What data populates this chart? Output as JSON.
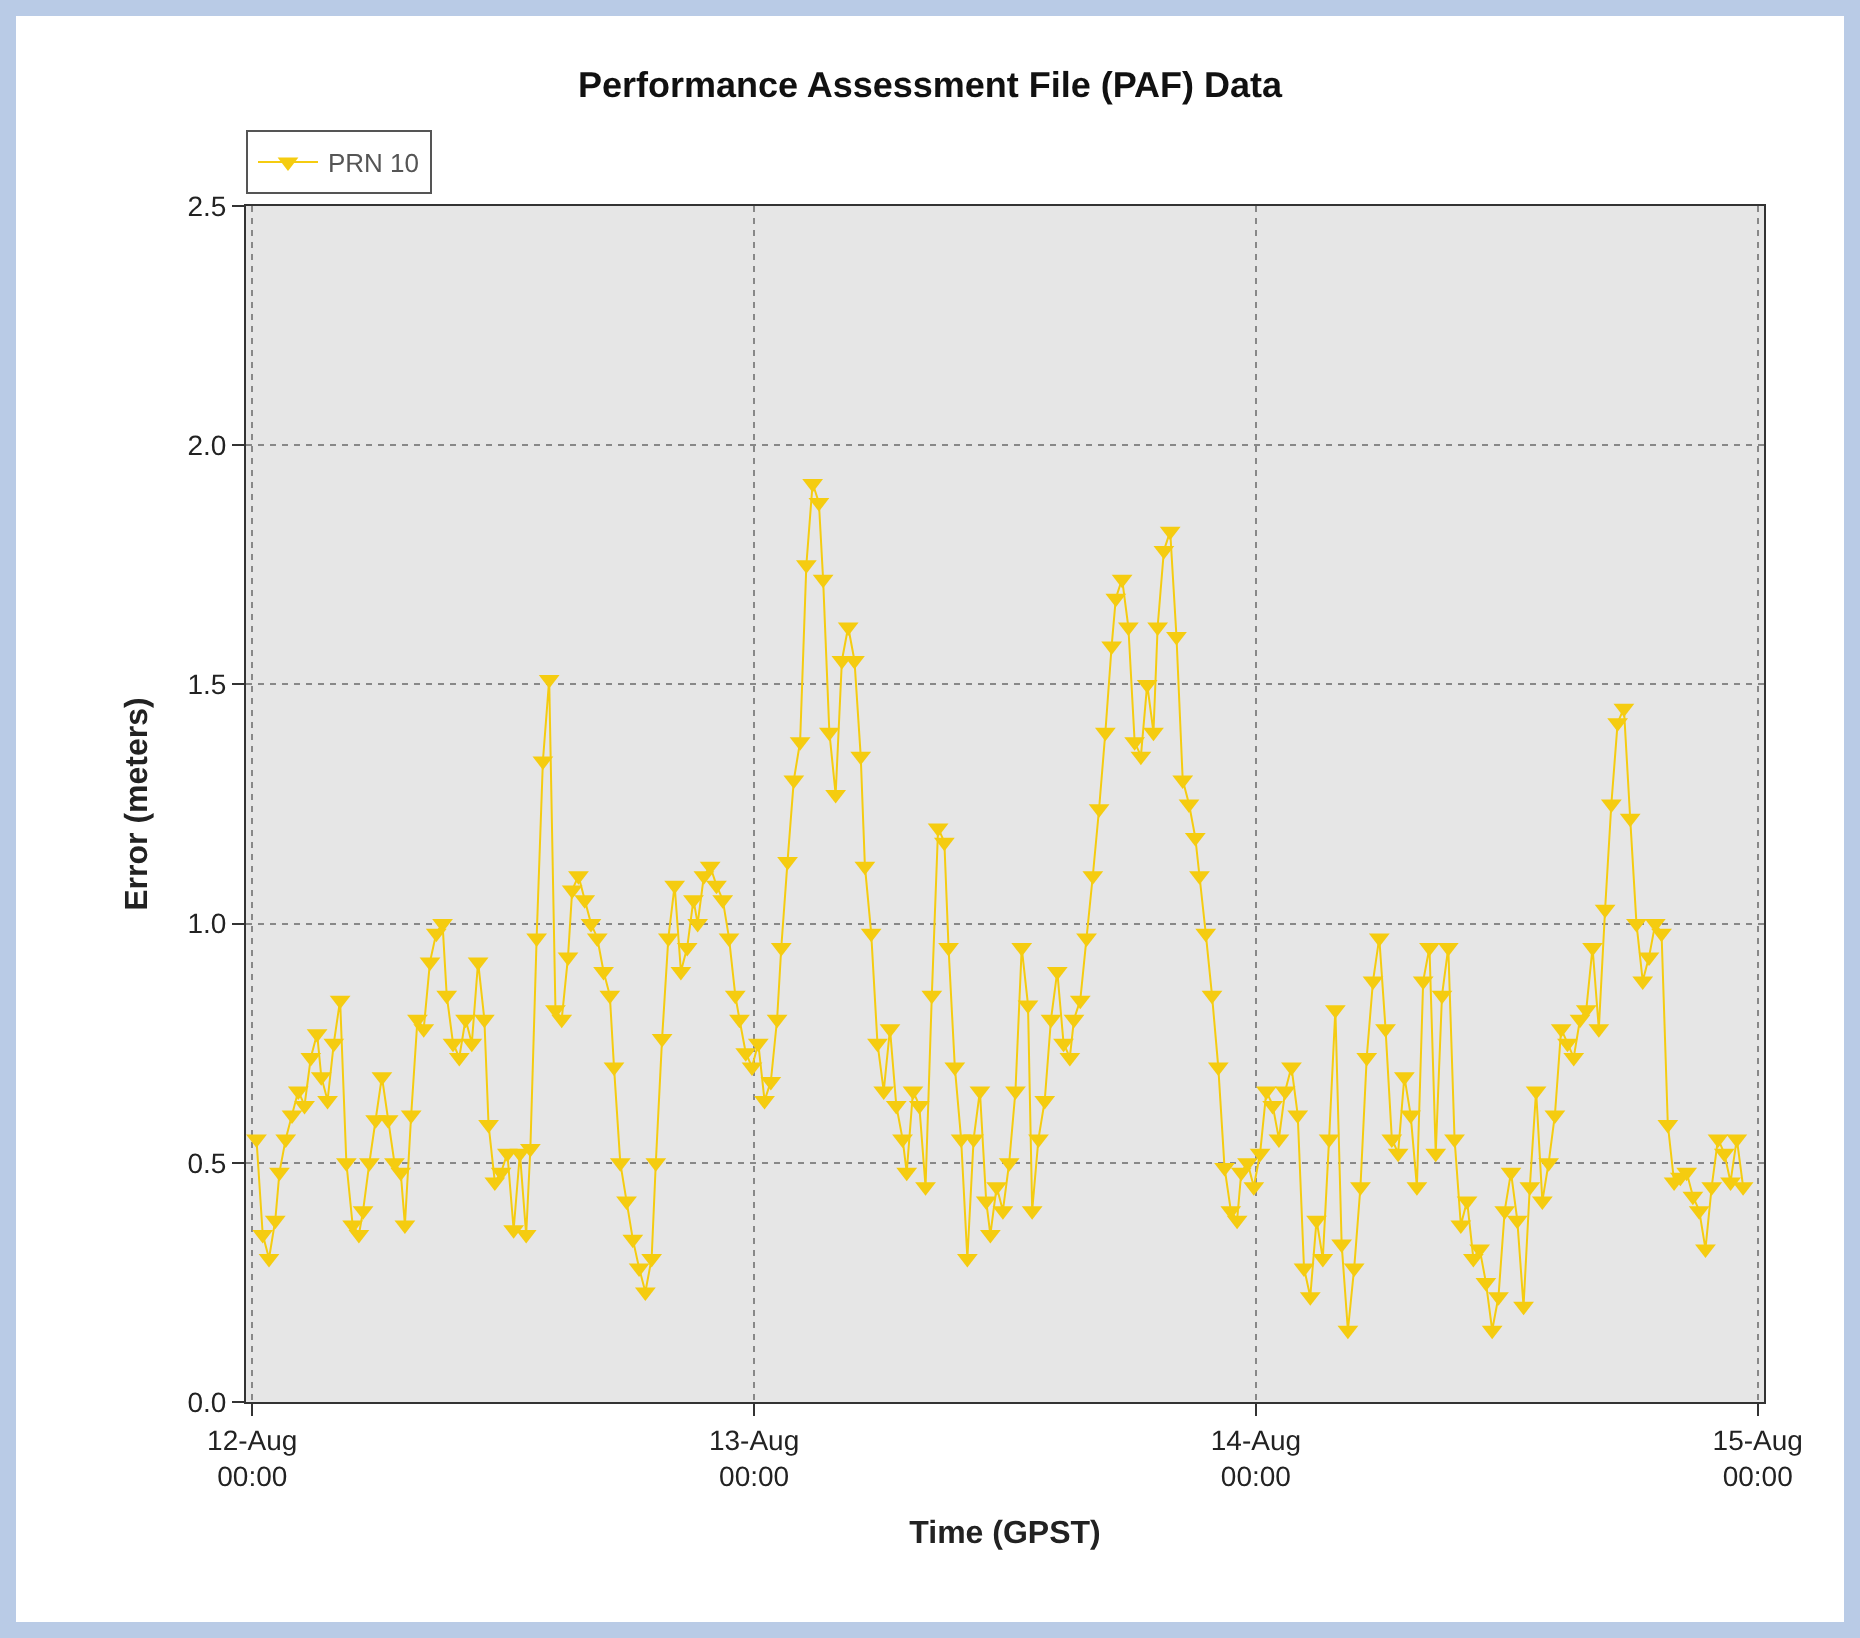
{
  "chart_data": {
    "type": "line",
    "title": "Performance Assessment File (PAF) Data",
    "xlabel": "Time (GPST)",
    "ylabel": "Error (meters)",
    "xlim": [
      "--08-11T23:42",
      "--08-15T00:18"
    ],
    "xticks": [
      {
        "value": "--08-12T00:00",
        "label": "12-Aug\n00:00"
      },
      {
        "value": "--08-13T00:00",
        "label": "13-Aug\n00:00"
      },
      {
        "value": "--08-14T00:00",
        "label": "14-Aug\n00:00"
      },
      {
        "value": "--08-15T00:00",
        "label": "15-Aug\n00:00"
      }
    ],
    "ylim": [
      0,
      2.5
    ],
    "yticks": [
      {
        "value": 0,
        "label": "0.0"
      },
      {
        "value": 0.5,
        "label": "0.5"
      },
      {
        "value": 1,
        "label": "1.0"
      },
      {
        "value": 1.5,
        "label": "1.5"
      },
      {
        "value": 2,
        "label": "2.0"
      },
      {
        "value": 2.5,
        "label": "2.5"
      }
    ],
    "grid": true,
    "legend": "top left",
    "marker": "triangle",
    "line_style": "solid",
    "series": [
      {
        "name": "PRN 10",
        "color": "#f5cc10",
        "x": [
          "--08-12T00:12",
          "--08-12T00:30",
          "--08-12T00:48",
          "--08-12T01:06",
          "--08-12T01:18",
          "--08-12T01:36",
          "--08-12T01:54",
          "--08-12T02:12",
          "--08-12T02:30",
          "--08-12T02:48",
          "--08-12T03:06",
          "--08-12T03:18",
          "--08-12T03:36",
          "--08-12T03:54",
          "--08-12T04:12",
          "--08-12T04:30",
          "--08-12T04:48",
          "--08-12T05:06",
          "--08-12T05:18",
          "--08-12T05:36",
          "--08-12T05:54",
          "--08-12T06:12",
          "--08-12T06:30",
          "--08-12T06:48",
          "--08-12T07:06",
          "--08-12T07:18",
          "--08-12T07:36",
          "--08-12T07:54",
          "--08-12T08:12",
          "--08-12T08:30",
          "--08-12T08:48",
          "--08-12T09:06",
          "--08-12T09:18",
          "--08-12T09:36",
          "--08-12T09:54",
          "--08-12T10:12",
          "--08-12T10:30",
          "--08-12T10:48",
          "--08-12T11:06",
          "--08-12T11:18",
          "--08-12T11:36",
          "--08-12T11:54",
          "--08-12T12:12",
          "--08-12T12:30",
          "--08-12T12:48",
          "--08-12T13:06",
          "--08-12T13:18",
          "--08-12T13:36",
          "--08-12T13:54",
          "--08-12T14:12",
          "--08-12T14:30",
          "--08-12T14:48",
          "--08-12T15:06",
          "--08-12T15:18",
          "--08-12T15:36",
          "--08-12T15:54",
          "--08-12T16:12",
          "--08-12T16:30",
          "--08-12T16:48",
          "--08-12T17:06",
          "--08-12T17:18",
          "--08-12T17:36",
          "--08-12T17:54",
          "--08-12T18:12",
          "--08-12T18:30",
          "--08-12T18:48",
          "--08-12T19:06",
          "--08-12T19:18",
          "--08-12T19:36",
          "--08-12T19:54",
          "--08-12T20:12",
          "--08-12T20:30",
          "--08-12T20:48",
          "--08-12T21:06",
          "--08-12T21:18",
          "--08-12T21:36",
          "--08-12T21:54",
          "--08-12T22:12",
          "--08-12T22:30",
          "--08-12T22:48",
          "--08-12T23:06",
          "--08-12T23:18",
          "--08-12T23:36",
          "--08-12T23:54",
          "--08-13T00:12",
          "--08-13T00:30",
          "--08-13T00:48",
          "--08-13T01:06",
          "--08-13T01:18",
          "--08-13T01:36",
          "--08-13T01:54",
          "--08-13T02:12",
          "--08-13T02:30",
          "--08-13T02:48",
          "--08-13T03:06",
          "--08-13T03:18",
          "--08-13T03:36",
          "--08-13T03:54",
          "--08-13T04:12",
          "--08-13T04:30",
          "--08-13T04:48",
          "--08-13T05:06",
          "--08-13T05:18",
          "--08-13T05:36",
          "--08-13T05:54",
          "--08-13T06:12",
          "--08-13T06:30",
          "--08-13T06:48",
          "--08-13T07:06",
          "--08-13T07:18",
          "--08-13T07:36",
          "--08-13T07:54",
          "--08-13T08:12",
          "--08-13T08:30",
          "--08-13T08:48",
          "--08-13T09:06",
          "--08-13T09:18",
          "--08-13T09:36",
          "--08-13T09:54",
          "--08-13T10:12",
          "--08-13T10:30",
          "--08-13T10:48",
          "--08-13T11:06",
          "--08-13T11:18",
          "--08-13T11:36",
          "--08-13T11:54",
          "--08-13T12:12",
          "--08-13T12:30",
          "--08-13T12:48",
          "--08-13T13:06",
          "--08-13T13:18",
          "--08-13T13:36",
          "--08-13T13:54",
          "--08-13T14:12",
          "--08-13T14:30",
          "--08-13T14:48",
          "--08-13T15:06",
          "--08-13T15:18",
          "--08-13T15:36",
          "--08-13T15:54",
          "--08-13T16:12",
          "--08-13T16:30",
          "--08-13T16:48",
          "--08-13T17:06",
          "--08-13T17:18",
          "--08-13T17:36",
          "--08-13T17:54",
          "--08-13T18:12",
          "--08-13T18:30",
          "--08-13T18:48",
          "--08-13T19:06",
          "--08-13T19:18",
          "--08-13T19:36",
          "--08-13T19:54",
          "--08-13T20:12",
          "--08-13T20:30",
          "--08-13T20:48",
          "--08-13T21:06",
          "--08-13T21:18",
          "--08-13T21:36",
          "--08-13T21:54",
          "--08-13T22:12",
          "--08-13T22:30",
          "--08-13T22:48",
          "--08-13T23:06",
          "--08-13T23:18",
          "--08-13T23:36",
          "--08-13T23:54",
          "--08-14T00:12",
          "--08-14T00:30",
          "--08-14T00:48",
          "--08-14T01:06",
          "--08-14T01:24",
          "--08-14T01:42",
          "--08-14T02:00",
          "--08-14T02:18",
          "--08-14T02:36",
          "--08-14T02:54",
          "--08-14T03:12",
          "--08-14T03:30",
          "--08-14T03:48",
          "--08-14T04:06",
          "--08-14T04:24",
          "--08-14T04:42",
          "--08-14T05:00",
          "--08-14T05:18",
          "--08-14T05:36",
          "--08-14T05:54",
          "--08-14T06:12",
          "--08-14T06:30",
          "--08-14T06:48",
          "--08-14T07:06",
          "--08-14T07:24",
          "--08-14T07:42",
          "--08-14T08:00",
          "--08-14T08:18",
          "--08-14T08:36",
          "--08-14T08:54",
          "--08-14T09:12",
          "--08-14T09:30",
          "--08-14T09:48",
          "--08-14T10:06",
          "--08-14T10:24",
          "--08-14T10:42",
          "--08-14T11:00",
          "--08-14T11:18",
          "--08-14T11:36",
          "--08-14T11:54",
          "--08-14T12:12",
          "--08-14T12:30",
          "--08-14T12:48",
          "--08-14T13:06",
          "--08-14T13:24",
          "--08-14T13:42",
          "--08-14T14:00",
          "--08-14T14:18",
          "--08-14T14:36",
          "--08-14T14:54",
          "--08-14T15:12",
          "--08-14T15:30",
          "--08-14T15:48",
          "--08-14T16:06",
          "--08-14T16:24",
          "--08-14T16:42",
          "--08-14T17:00",
          "--08-14T17:18",
          "--08-14T17:36",
          "--08-14T17:54",
          "--08-14T18:12",
          "--08-14T18:30",
          "--08-14T18:48",
          "--08-14T19:06",
          "--08-14T19:24",
          "--08-14T19:42",
          "--08-14T20:00",
          "--08-14T20:18",
          "--08-14T20:36",
          "--08-14T20:54",
          "--08-14T21:12",
          "--08-14T21:30",
          "--08-14T21:48",
          "--08-14T22:06",
          "--08-14T22:24",
          "--08-14T22:42",
          "--08-14T23:00",
          "--08-14T23:18"
        ],
        "values": [
          0.55,
          0.35,
          0.3,
          0.38,
          0.48,
          0.55,
          0.6,
          0.65,
          0.62,
          0.72,
          0.77,
          0.68,
          0.63,
          0.75,
          0.84,
          0.5,
          0.37,
          0.35,
          0.4,
          0.5,
          0.59,
          0.68,
          0.59,
          0.5,
          0.48,
          0.37,
          0.6,
          0.8,
          0.78,
          0.92,
          0.98,
          1.0,
          0.85,
          0.75,
          0.72,
          0.8,
          0.75,
          0.92,
          0.8,
          0.58,
          0.46,
          0.48,
          0.52,
          0.36,
          0.52,
          0.35,
          0.53,
          0.97,
          1.34,
          1.51,
          0.82,
          0.8,
          0.93,
          1.07,
          1.1,
          1.05,
          1.0,
          0.97,
          0.9,
          0.85,
          0.7,
          0.5,
          0.42,
          0.34,
          0.28,
          0.23,
          0.3,
          0.5,
          0.76,
          0.97,
          1.08,
          0.9,
          0.95,
          1.05,
          1.0,
          1.1,
          1.12,
          1.08,
          1.05,
          0.97,
          0.85,
          0.8,
          0.73,
          0.7,
          0.75,
          0.63,
          0.67,
          0.8,
          0.95,
          1.13,
          1.3,
          1.38,
          1.75,
          1.92,
          1.88,
          1.72,
          1.4,
          1.27,
          1.55,
          1.62,
          1.55,
          1.35,
          1.12,
          0.98,
          0.75,
          0.65,
          0.78,
          0.62,
          0.55,
          0.48,
          0.65,
          0.62,
          0.45,
          0.85,
          1.2,
          1.17,
          0.95,
          0.7,
          0.55,
          0.3,
          0.55,
          0.65,
          0.42,
          0.35,
          0.45,
          0.4,
          0.5,
          0.65,
          0.95,
          0.83,
          0.4,
          0.55,
          0.63,
          0.8,
          0.9,
          0.75,
          0.72,
          0.8,
          0.84,
          0.97,
          1.1,
          1.24,
          1.4,
          1.58,
          1.68,
          1.72,
          1.62,
          1.38,
          1.35,
          1.5,
          1.4,
          1.62,
          1.78,
          1.82,
          1.6,
          1.3,
          1.25,
          1.18,
          1.1,
          0.98,
          0.85,
          0.7,
          0.49,
          0.4,
          0.38,
          0.48,
          0.5,
          0.45,
          0.52,
          0.65,
          0.62,
          0.55,
          0.65,
          0.7,
          0.6,
          0.28,
          0.22,
          0.38,
          0.3,
          0.55,
          0.82,
          0.33,
          0.15,
          0.28,
          0.45,
          0.72,
          0.88,
          0.97,
          0.78,
          0.55,
          0.52,
          0.68,
          0.6,
          0.45,
          0.88,
          0.95,
          0.52,
          0.85,
          0.95,
          0.55,
          0.37,
          0.42,
          0.3,
          0.32,
          0.25,
          0.15,
          0.22,
          0.4,
          0.48,
          0.38,
          0.2,
          0.45,
          0.65,
          0.42,
          0.5,
          0.6,
          0.78,
          0.75,
          0.72,
          0.8,
          0.82,
          0.95,
          0.78,
          1.03,
          1.25,
          1.42,
          1.45,
          1.22,
          1.0,
          0.88,
          0.93,
          1.0,
          0.98,
          0.58,
          0.46,
          0.47,
          0.48,
          0.43,
          0.4,
          0.32,
          0.45,
          0.55,
          0.52,
          0.46,
          0.55,
          0.45
        ]
      }
    ]
  }
}
